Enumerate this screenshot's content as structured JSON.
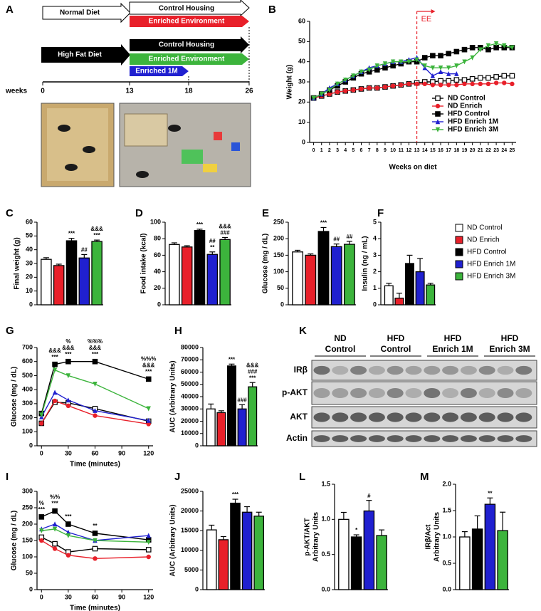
{
  "diagram": {
    "panel": "A",
    "arrows": [
      "Normal Diet",
      "Control Housing",
      "Enriched Environment",
      "High Fat Diet",
      "Control Housing",
      "Enriched Environment",
      "Enriched 1M"
    ],
    "axis_label": "weeks",
    "weeks": [
      "0",
      "13",
      "18",
      "26"
    ]
  },
  "blot": {
    "panel": "K",
    "groups": [
      [
        "ND",
        "Control"
      ],
      [
        "HFD",
        "Control"
      ],
      [
        "HFD",
        "Enrich 1M"
      ],
      [
        "HFD",
        "Enrich 3M"
      ]
    ],
    "rows": [
      "IRβ",
      "p-AKT",
      "AKT",
      "Actin"
    ]
  },
  "chart_data": [
    {
      "type": "line",
      "panel": "B",
      "ylabel": "Weight (g)",
      "xlabel": "Weeks on diet",
      "x": [
        0,
        1,
        2,
        3,
        4,
        5,
        6,
        7,
        8,
        9,
        10,
        11,
        12,
        13,
        14,
        15,
        16,
        17,
        18,
        19,
        20,
        21,
        22,
        23,
        24,
        25
      ],
      "xlim": [
        -0.5,
        25.5
      ],
      "xticks": [
        0,
        1,
        2,
        3,
        4,
        5,
        6,
        7,
        8,
        9,
        10,
        11,
        12,
        13,
        14,
        15,
        16,
        17,
        18,
        19,
        20,
        21,
        22,
        23,
        24,
        25
      ],
      "ylim": [
        0,
        60
      ],
      "yticks": [
        0,
        10,
        20,
        30,
        40,
        50,
        60
      ],
      "legend": "lower right",
      "event": {
        "x": 13,
        "label": "EE",
        "color": "#e8202a"
      },
      "series": [
        {
          "name": "ND Control",
          "color": "#000000",
          "marker": "square-open",
          "values": [
            22,
            23,
            24,
            25,
            25.5,
            26,
            26.5,
            27,
            27,
            27.5,
            28,
            28.5,
            29,
            29.5,
            30,
            30,
            30.5,
            30.5,
            31,
            31,
            31.5,
            32,
            32,
            32.5,
            33,
            33
          ]
        },
        {
          "name": "ND Enrich",
          "color": "#e8202a",
          "marker": "circle",
          "values": [
            22,
            23,
            24,
            25,
            25.5,
            26,
            26.5,
            27,
            27,
            27.5,
            28,
            28.5,
            29,
            29,
            29,
            28.5,
            28.5,
            28.5,
            28.5,
            29,
            29,
            29,
            29,
            29.5,
            29.5,
            29
          ]
        },
        {
          "name": "HFD Control",
          "color": "#000000",
          "marker": "square",
          "values": [
            22,
            24,
            26,
            28,
            30,
            32,
            34,
            35,
            36,
            37,
            38,
            39,
            40,
            40,
            42,
            43,
            43,
            44,
            45,
            46,
            47,
            47,
            46,
            47,
            47,
            47
          ]
        },
        {
          "name": "HFD Enrich 1M",
          "color": "#2020d0",
          "marker": "triangle",
          "values": [
            22,
            24,
            27,
            29,
            31,
            33,
            35,
            37,
            38,
            39,
            40,
            40,
            41,
            42,
            37,
            33,
            35,
            34,
            34,
            null,
            null,
            null,
            null,
            null,
            null,
            null
          ]
        },
        {
          "name": "HFD Enrich 3M",
          "color": "#3cb43c",
          "marker": "triangle-down",
          "values": [
            22,
            24,
            26,
            29,
            31,
            33,
            35,
            36,
            38,
            39,
            40,
            40,
            40,
            41,
            38,
            37,
            37,
            37,
            38,
            40,
            42,
            46,
            48,
            49,
            48,
            47
          ]
        }
      ]
    },
    {
      "type": "bar",
      "panel": "C",
      "ylabel": "Final weight (g)",
      "categories": [
        "ND Control",
        "ND Enrich",
        "HFD Control",
        "HFD Enrich 1M",
        "HFD Enrich 3M"
      ],
      "colors": [
        "#ffffff",
        "#e8202a",
        "#000000",
        "#2020d0",
        "#3cb43c"
      ],
      "values": [
        33,
        28.5,
        46.5,
        34,
        46
      ],
      "errors": [
        1.2,
        1,
        1.8,
        2.5,
        1
      ],
      "ylim": [
        0,
        60
      ],
      "yticks": [
        0,
        10,
        20,
        30,
        40,
        50,
        60
      ],
      "legend": "right",
      "annotations": [
        null,
        null,
        [
          "***"
        ],
        [
          "##"
        ],
        [
          "&&&",
          "***"
        ]
      ]
    },
    {
      "type": "bar",
      "panel": "D",
      "ylabel": "Food intake (kcal)",
      "categories": [
        "ND Control",
        "ND Enrich",
        "HFD Control",
        "HFD Enrich 1M",
        "HFD Enrich 3M"
      ],
      "colors": [
        "#ffffff",
        "#e8202a",
        "#000000",
        "#2020d0",
        "#3cb43c"
      ],
      "values": [
        73,
        70,
        90,
        61,
        79
      ],
      "errors": [
        2,
        1.5,
        1.5,
        3,
        2.5
      ],
      "ylim": [
        0,
        100
      ],
      "yticks": [
        0,
        20,
        40,
        60,
        80,
        100
      ],
      "annotations": [
        null,
        null,
        [
          "***"
        ],
        [
          "##",
          "**"
        ],
        [
          "&&&",
          "###"
        ]
      ]
    },
    {
      "type": "bar",
      "panel": "E",
      "ylabel": "Glucose (mg / dL)",
      "categories": [
        "ND Control",
        "ND Enrich",
        "HFD Control",
        "HFD Enrich 1M",
        "HFD Enrich 3M"
      ],
      "colors": [
        "#ffffff",
        "#e8202a",
        "#000000",
        "#2020d0",
        "#3cb43c"
      ],
      "values": [
        160,
        150,
        222,
        176,
        183
      ],
      "errors": [
        5,
        4,
        12,
        8,
        9
      ],
      "ylim": [
        0,
        250
      ],
      "yticks": [
        0,
        50,
        100,
        150,
        200,
        250
      ],
      "annotations": [
        null,
        null,
        [
          "***"
        ],
        [
          "##"
        ],
        [
          "##"
        ]
      ]
    },
    {
      "type": "bar",
      "panel": "F",
      "ylabel": "Insulin (ng / mL)",
      "categories": [
        "ND Control",
        "ND Enrich",
        "HFD Control",
        "HFD Enrich 1M",
        "HFD Enrich 3M"
      ],
      "colors": [
        "#ffffff",
        "#e8202a",
        "#000000",
        "#2020d0",
        "#3cb43c"
      ],
      "values": [
        1.15,
        0.4,
        2.5,
        2.0,
        1.2
      ],
      "errors": [
        0.15,
        0.3,
        0.5,
        0.8,
        0.1
      ],
      "ylim": [
        0,
        5
      ],
      "yticks": [
        0,
        1,
        2,
        3,
        4,
        5
      ]
    },
    {
      "type": "line",
      "panel": "G",
      "ylabel": "Glucose (mg / dL)",
      "xlabel": "Time (minutes)",
      "x": [
        0,
        15,
        30,
        60,
        120
      ],
      "xlim": [
        -5,
        125
      ],
      "xticks": [
        0,
        30,
        60,
        90,
        120
      ],
      "ylim": [
        0,
        700
      ],
      "yticks": [
        0,
        100,
        200,
        300,
        400,
        500,
        600,
        700
      ],
      "annotations": [
        null,
        [
          "&&&",
          "***"
        ],
        [
          "%",
          "&&&",
          "***"
        ],
        [
          "%%%",
          "&&&",
          "***"
        ],
        [
          "%%%",
          "&&&",
          "***"
        ]
      ],
      "series": [
        {
          "name": "ND Control",
          "color": "#000000",
          "marker": "square-open",
          "values": [
            160,
            310,
            305,
            265,
            175
          ]
        },
        {
          "name": "ND Enrich",
          "color": "#e8202a",
          "marker": "circle",
          "values": [
            160,
            320,
            285,
            215,
            155
          ]
        },
        {
          "name": "HFD Control",
          "color": "#000000",
          "marker": "square",
          "values": [
            230,
            580,
            600,
            600,
            475
          ]
        },
        {
          "name": "HFD Enrich 1M",
          "color": "#2020d0",
          "marker": "triangle",
          "values": [
            205,
            380,
            325,
            250,
            180
          ]
        },
        {
          "name": "HFD Enrich 3M",
          "color": "#3cb43c",
          "marker": "triangle-down",
          "values": [
            220,
            540,
            500,
            440,
            265
          ]
        }
      ]
    },
    {
      "type": "bar",
      "panel": "H",
      "ylabel": "AUC (Arbitrary Units)",
      "categories": [
        "ND Control",
        "ND Enrich",
        "HFD Control",
        "HFD Enrich 1M",
        "HFD Enrich 3M"
      ],
      "colors": [
        "#ffffff",
        "#e8202a",
        "#000000",
        "#2020d0",
        "#3cb43c"
      ],
      "values": [
        30000,
        27000,
        65000,
        30000,
        48000
      ],
      "errors": [
        4000,
        1500,
        1500,
        3500,
        3500
      ],
      "ylim": [
        0,
        80000
      ],
      "yticks": [
        0,
        10000,
        20000,
        30000,
        40000,
        50000,
        60000,
        70000,
        80000
      ],
      "annotations": [
        null,
        null,
        [
          "***"
        ],
        [
          "###"
        ],
        [
          "&&&",
          "###",
          "***"
        ]
      ]
    },
    {
      "type": "line",
      "panel": "I",
      "ylabel": "Glucose (mg / dL)",
      "xlabel": "Time (minutes)",
      "x": [
        0,
        15,
        30,
        60,
        120
      ],
      "xlim": [
        -5,
        125
      ],
      "xticks": [
        0,
        30,
        60,
        90,
        120
      ],
      "ylim": [
        0,
        300
      ],
      "yticks": [
        0,
        50,
        100,
        150,
        200,
        250,
        300
      ],
      "annotations": [
        [
          "%",
          "***"
        ],
        [
          "%%",
          "***"
        ],
        [
          "***"
        ],
        [
          "**"
        ],
        null
      ],
      "series": [
        {
          "name": "ND Control",
          "color": "#000000",
          "marker": "square-open",
          "values": [
            160,
            140,
            115,
            125,
            122
          ]
        },
        {
          "name": "ND Enrich",
          "color": "#e8202a",
          "marker": "circle",
          "values": [
            150,
            125,
            105,
            95,
            100
          ]
        },
        {
          "name": "HFD Control",
          "color": "#000000",
          "marker": "square",
          "values": [
            222,
            240,
            200,
            172,
            152
          ]
        },
        {
          "name": "HFD Enrich 1M",
          "color": "#2020d0",
          "marker": "triangle",
          "values": [
            185,
            200,
            175,
            150,
            165
          ]
        },
        {
          "name": "HFD Enrich 3M",
          "color": "#3cb43c",
          "marker": "triangle-down",
          "values": [
            180,
            185,
            165,
            150,
            145
          ]
        }
      ]
    },
    {
      "type": "bar",
      "panel": "J",
      "ylabel": "AUC (Arbitrary Units)",
      "categories": [
        "ND Control",
        "ND Enrich",
        "HFD Control",
        "HFD Enrich 1M",
        "HFD Enrich 3M"
      ],
      "colors": [
        "#ffffff",
        "#e8202a",
        "#000000",
        "#2020d0",
        "#3cb43c"
      ],
      "values": [
        15200,
        12700,
        22000,
        19700,
        18700
      ],
      "errors": [
        1200,
        800,
        1000,
        1400,
        1000
      ],
      "ylim": [
        0,
        25000
      ],
      "yticks": [
        0,
        5000,
        10000,
        15000,
        20000,
        25000
      ],
      "annotations": [
        null,
        null,
        [
          "***"
        ],
        null,
        null
      ]
    },
    {
      "type": "bar",
      "panel": "L",
      "ylabel": [
        "p-AKT/AKT",
        "Arbitrary Units"
      ],
      "categories": [
        "ND Control",
        "HFD Control",
        "HFD Enrich 1M",
        "HFD Enrich 3M"
      ],
      "colors": [
        "#ffffff",
        "#000000",
        "#2020d0",
        "#3cb43c"
      ],
      "values": [
        1.0,
        0.75,
        1.12,
        0.77
      ],
      "errors": [
        0.1,
        0.03,
        0.15,
        0.08
      ],
      "ylim": [
        0,
        1.5
      ],
      "yticks": [
        {
          "value": 0,
          "label": "0.0"
        },
        {
          "value": 0.5,
          "label": "0.5"
        },
        {
          "value": 1,
          "label": "1.0"
        },
        {
          "value": 1.5,
          "label": "1.5"
        }
      ],
      "annotations": [
        null,
        [
          "*"
        ],
        [
          "#"
        ],
        null
      ]
    },
    {
      "type": "bar",
      "panel": "M",
      "ylabel": [
        "IRβ/Act",
        "Arbitrary Units"
      ],
      "categories": [
        "ND Control",
        "HFD Control",
        "HFD Enrich 1M",
        "HFD Enrich 3M"
      ],
      "colors": [
        "#ffffff",
        "#000000",
        "#2020d0",
        "#3cb43c"
      ],
      "values": [
        1.0,
        1.15,
        1.62,
        1.12
      ],
      "errors": [
        0.1,
        0.25,
        0.12,
        0.35
      ],
      "ylim": [
        0,
        2
      ],
      "yticks": [
        {
          "value": 0,
          "label": "0.0"
        },
        {
          "value": 0.5,
          "label": "0.5"
        },
        {
          "value": 1,
          "label": "1.0"
        },
        {
          "value": 1.5,
          "label": "1.5"
        },
        {
          "value": 2,
          "label": "2.0"
        }
      ],
      "annotations": [
        null,
        null,
        [
          "**"
        ],
        null
      ]
    }
  ]
}
